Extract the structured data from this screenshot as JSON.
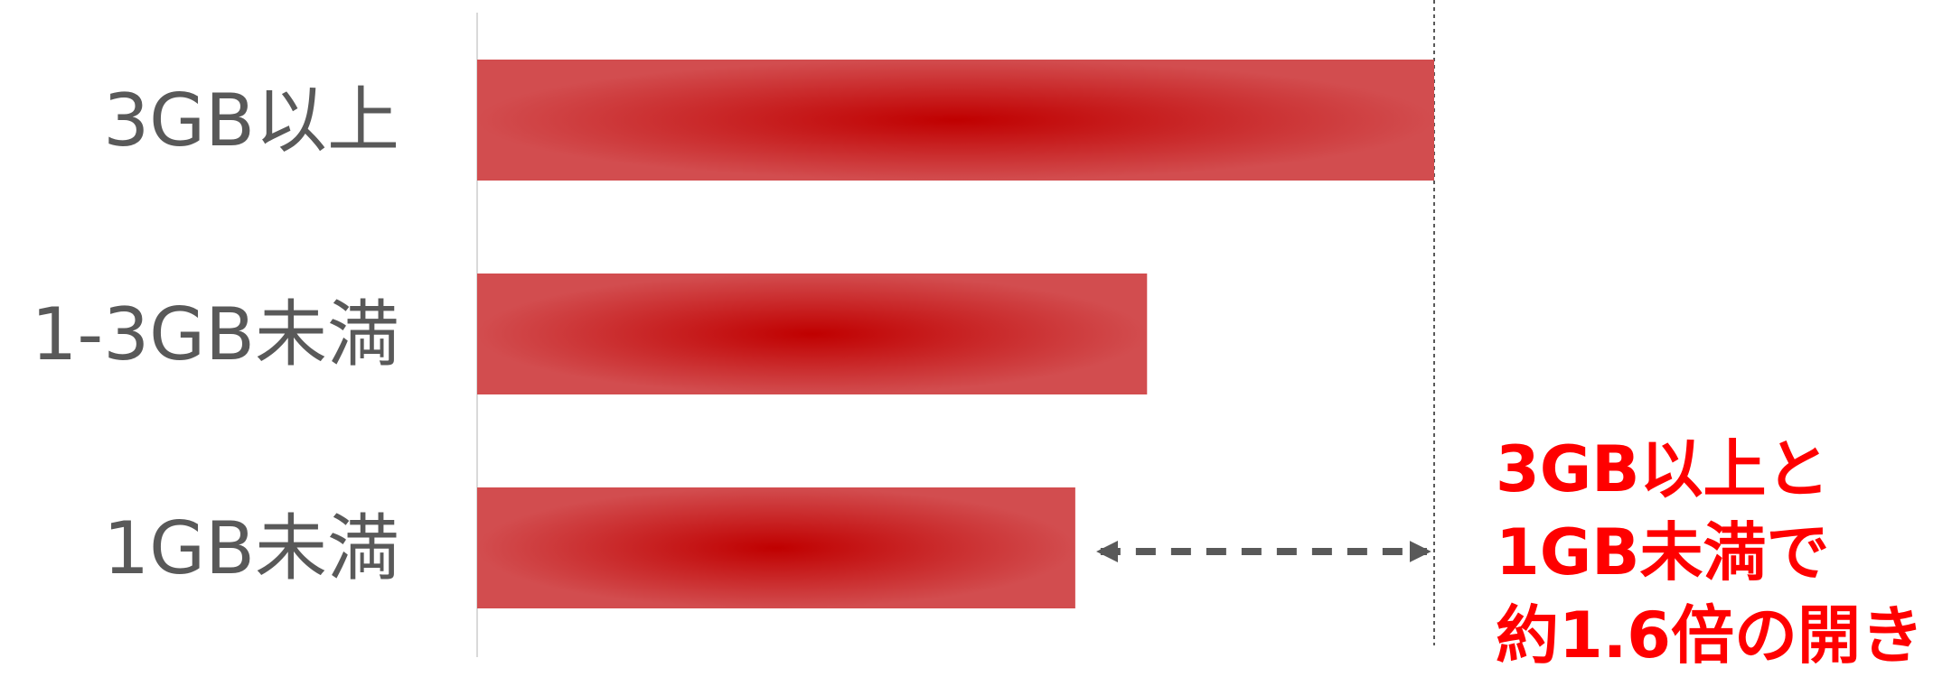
{
  "chart_data": {
    "type": "bar",
    "orientation": "horizontal",
    "categories": [
      "3GB以上",
      "1-3GB未満",
      "1GB未満"
    ],
    "values": [
      1.6,
      1.12,
      1.0
    ],
    "title": "",
    "xlabel": "",
    "ylabel": "",
    "xlim": [
      0,
      1.6
    ],
    "grid": false,
    "legend": "none",
    "bar_color": "#c00000",
    "bar_edge_color": "#d24d4f",
    "annotation": {
      "lines": [
        "3GB以上と",
        "1GB未満で",
        "約1.6倍の開き"
      ],
      "color": "#ff0000",
      "arrow": {
        "from_category": "1GB未満",
        "to_category": "3GB以上"
      }
    }
  }
}
